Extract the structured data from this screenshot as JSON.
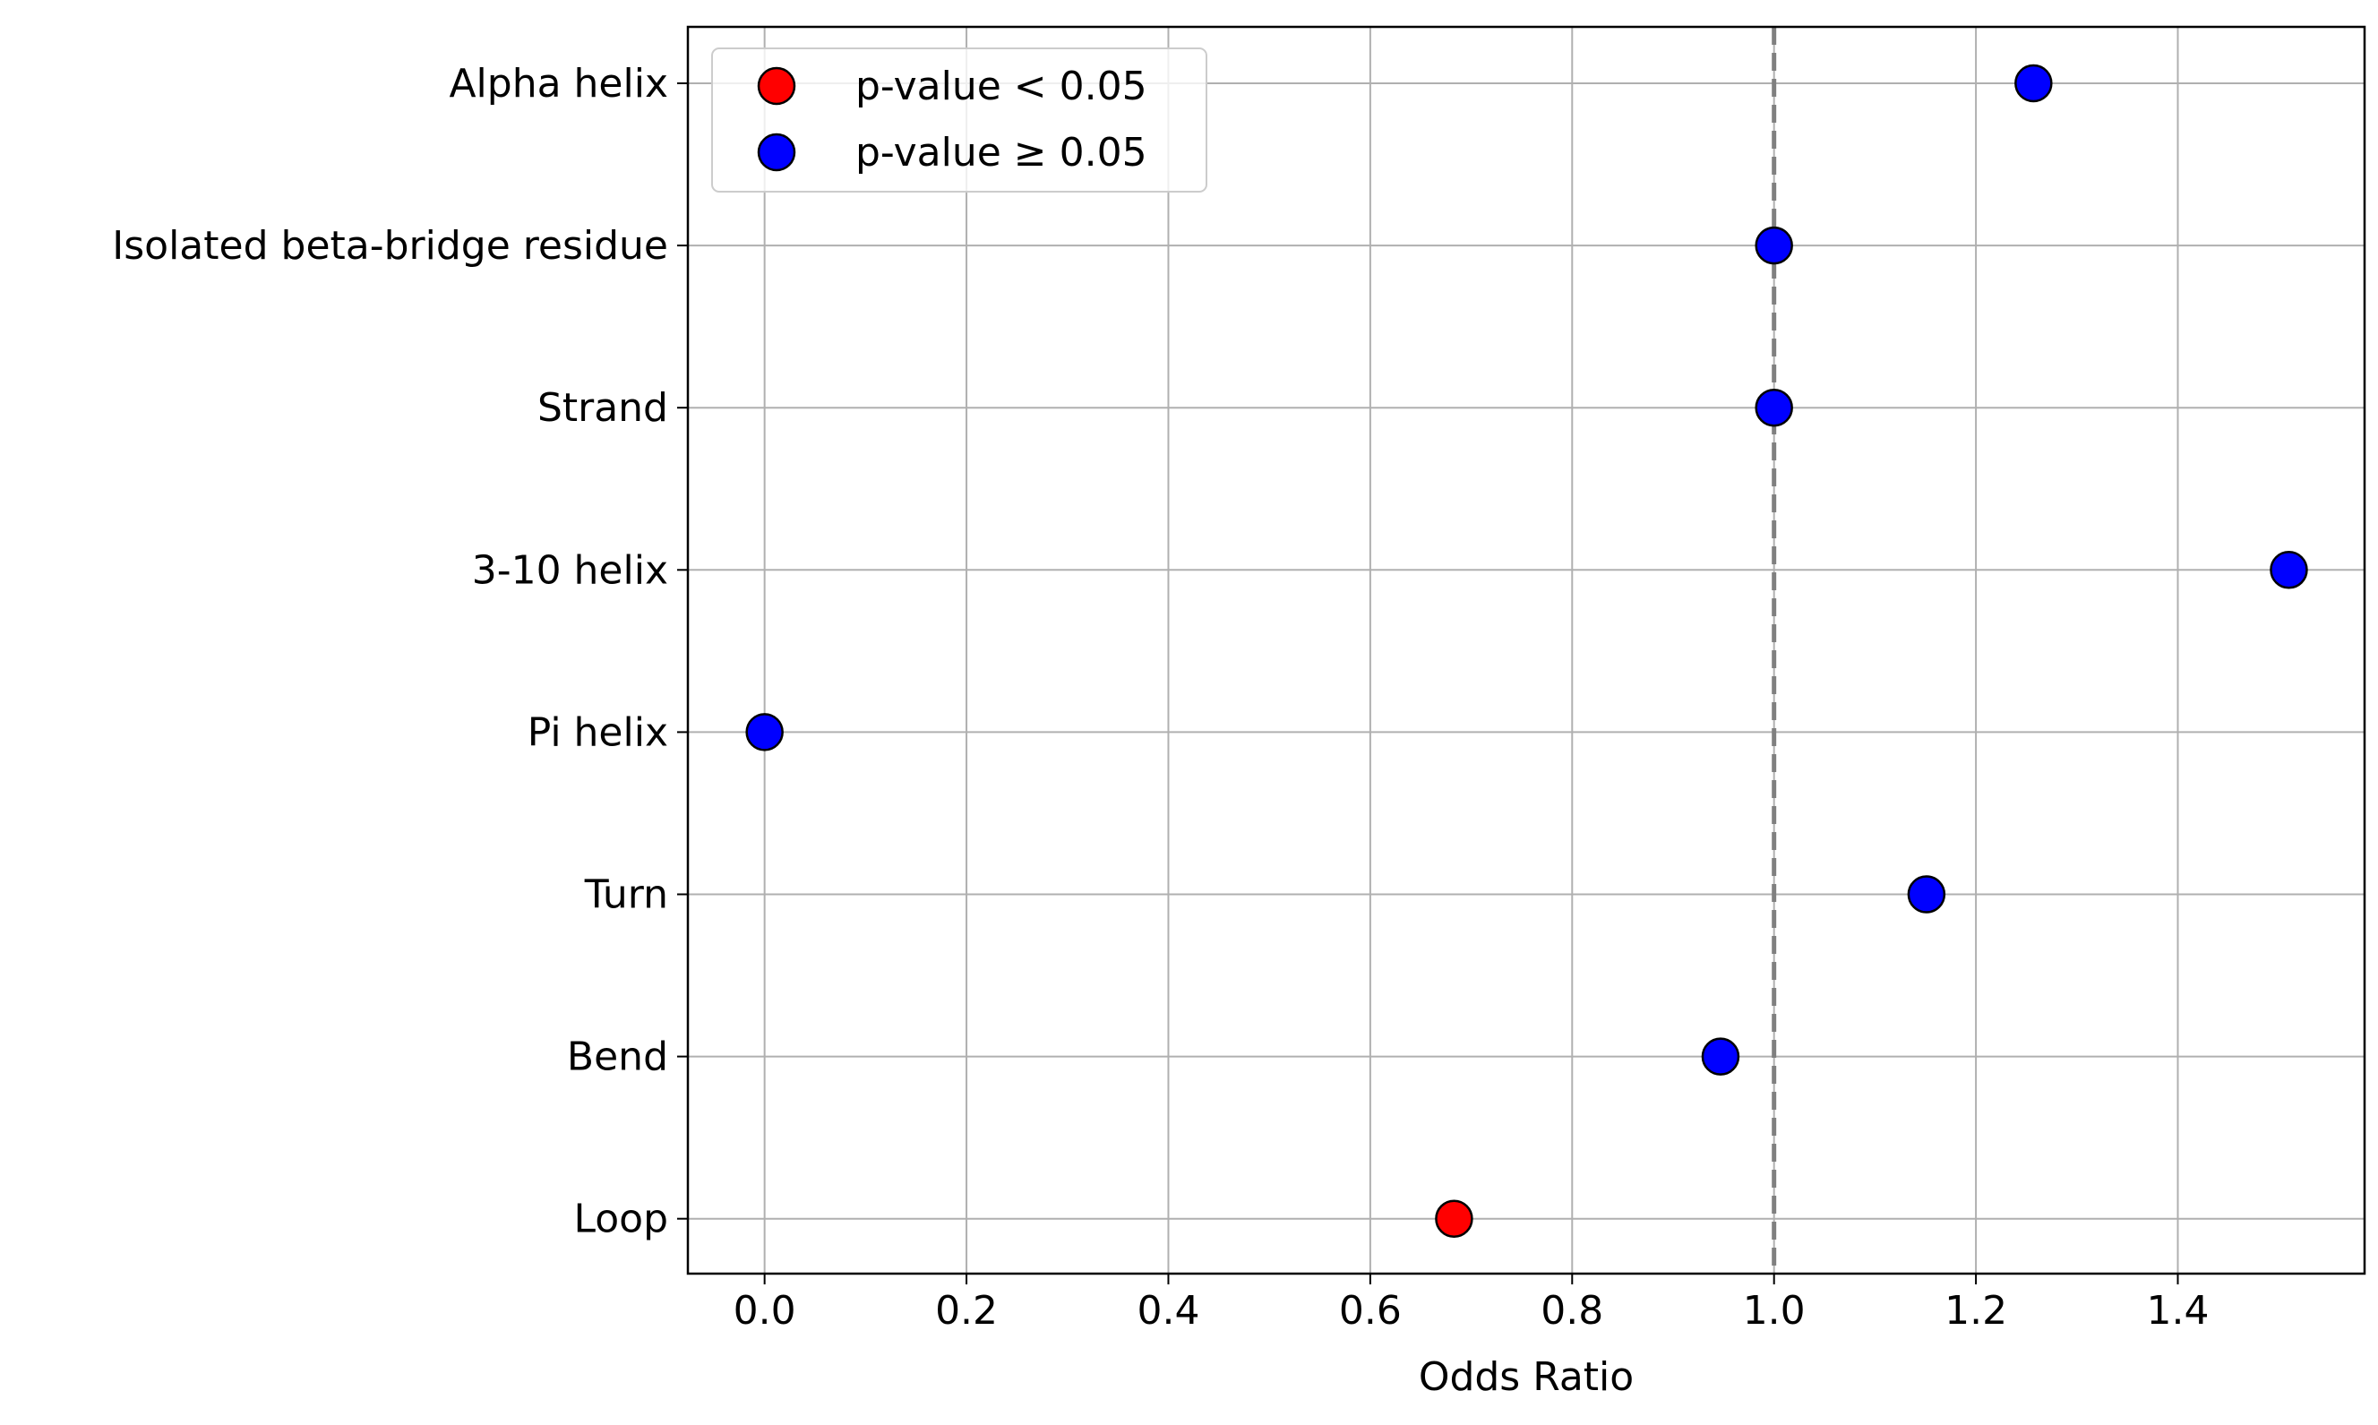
{
  "chart_data": {
    "type": "scatter",
    "title": "",
    "xlabel": "Odds Ratio",
    "ylabel": "",
    "xlim": [
      -0.076,
      1.585
    ],
    "x_ticks": [
      0.0,
      0.2,
      0.4,
      0.6,
      0.8,
      1.0,
      1.2,
      1.4
    ],
    "x_tick_labels": [
      "0.0",
      "0.2",
      "0.4",
      "0.6",
      "0.8",
      "1.0",
      "1.2",
      "1.4"
    ],
    "categories": [
      "Alpha helix",
      "Isolated beta-bridge residue",
      "Strand",
      "3-10 helix",
      "Pi helix",
      "Turn",
      "Bend",
      "Loop"
    ],
    "points": [
      {
        "category": "Alpha helix",
        "x": 1.257,
        "significant": false
      },
      {
        "category": "Isolated beta-bridge residue",
        "x": 1.0,
        "significant": false
      },
      {
        "category": "Strand",
        "x": 1.0,
        "significant": false
      },
      {
        "category": "3-10 helix",
        "x": 1.51,
        "significant": false
      },
      {
        "category": "Pi helix",
        "x": 0.0,
        "significant": false
      },
      {
        "category": "Turn",
        "x": 1.151,
        "significant": false
      },
      {
        "category": "Bend",
        "x": 0.947,
        "significant": false
      },
      {
        "category": "Loop",
        "x": 0.683,
        "significant": true
      }
    ],
    "reference_line": {
      "x": 1.0,
      "style": "dashed",
      "color": "#808080"
    },
    "grid": true,
    "legend": {
      "placement": "top-left",
      "entries": [
        {
          "label": "p-value < 0.05",
          "color": "#ff0000"
        },
        {
          "label": "p-value ≥ 0.05",
          "color": "#0000ff"
        }
      ]
    },
    "colors": {
      "significant": "#ff0000",
      "not_significant": "#0000ff",
      "marker_edge": "#000000",
      "grid": "#b0b0b0"
    }
  }
}
